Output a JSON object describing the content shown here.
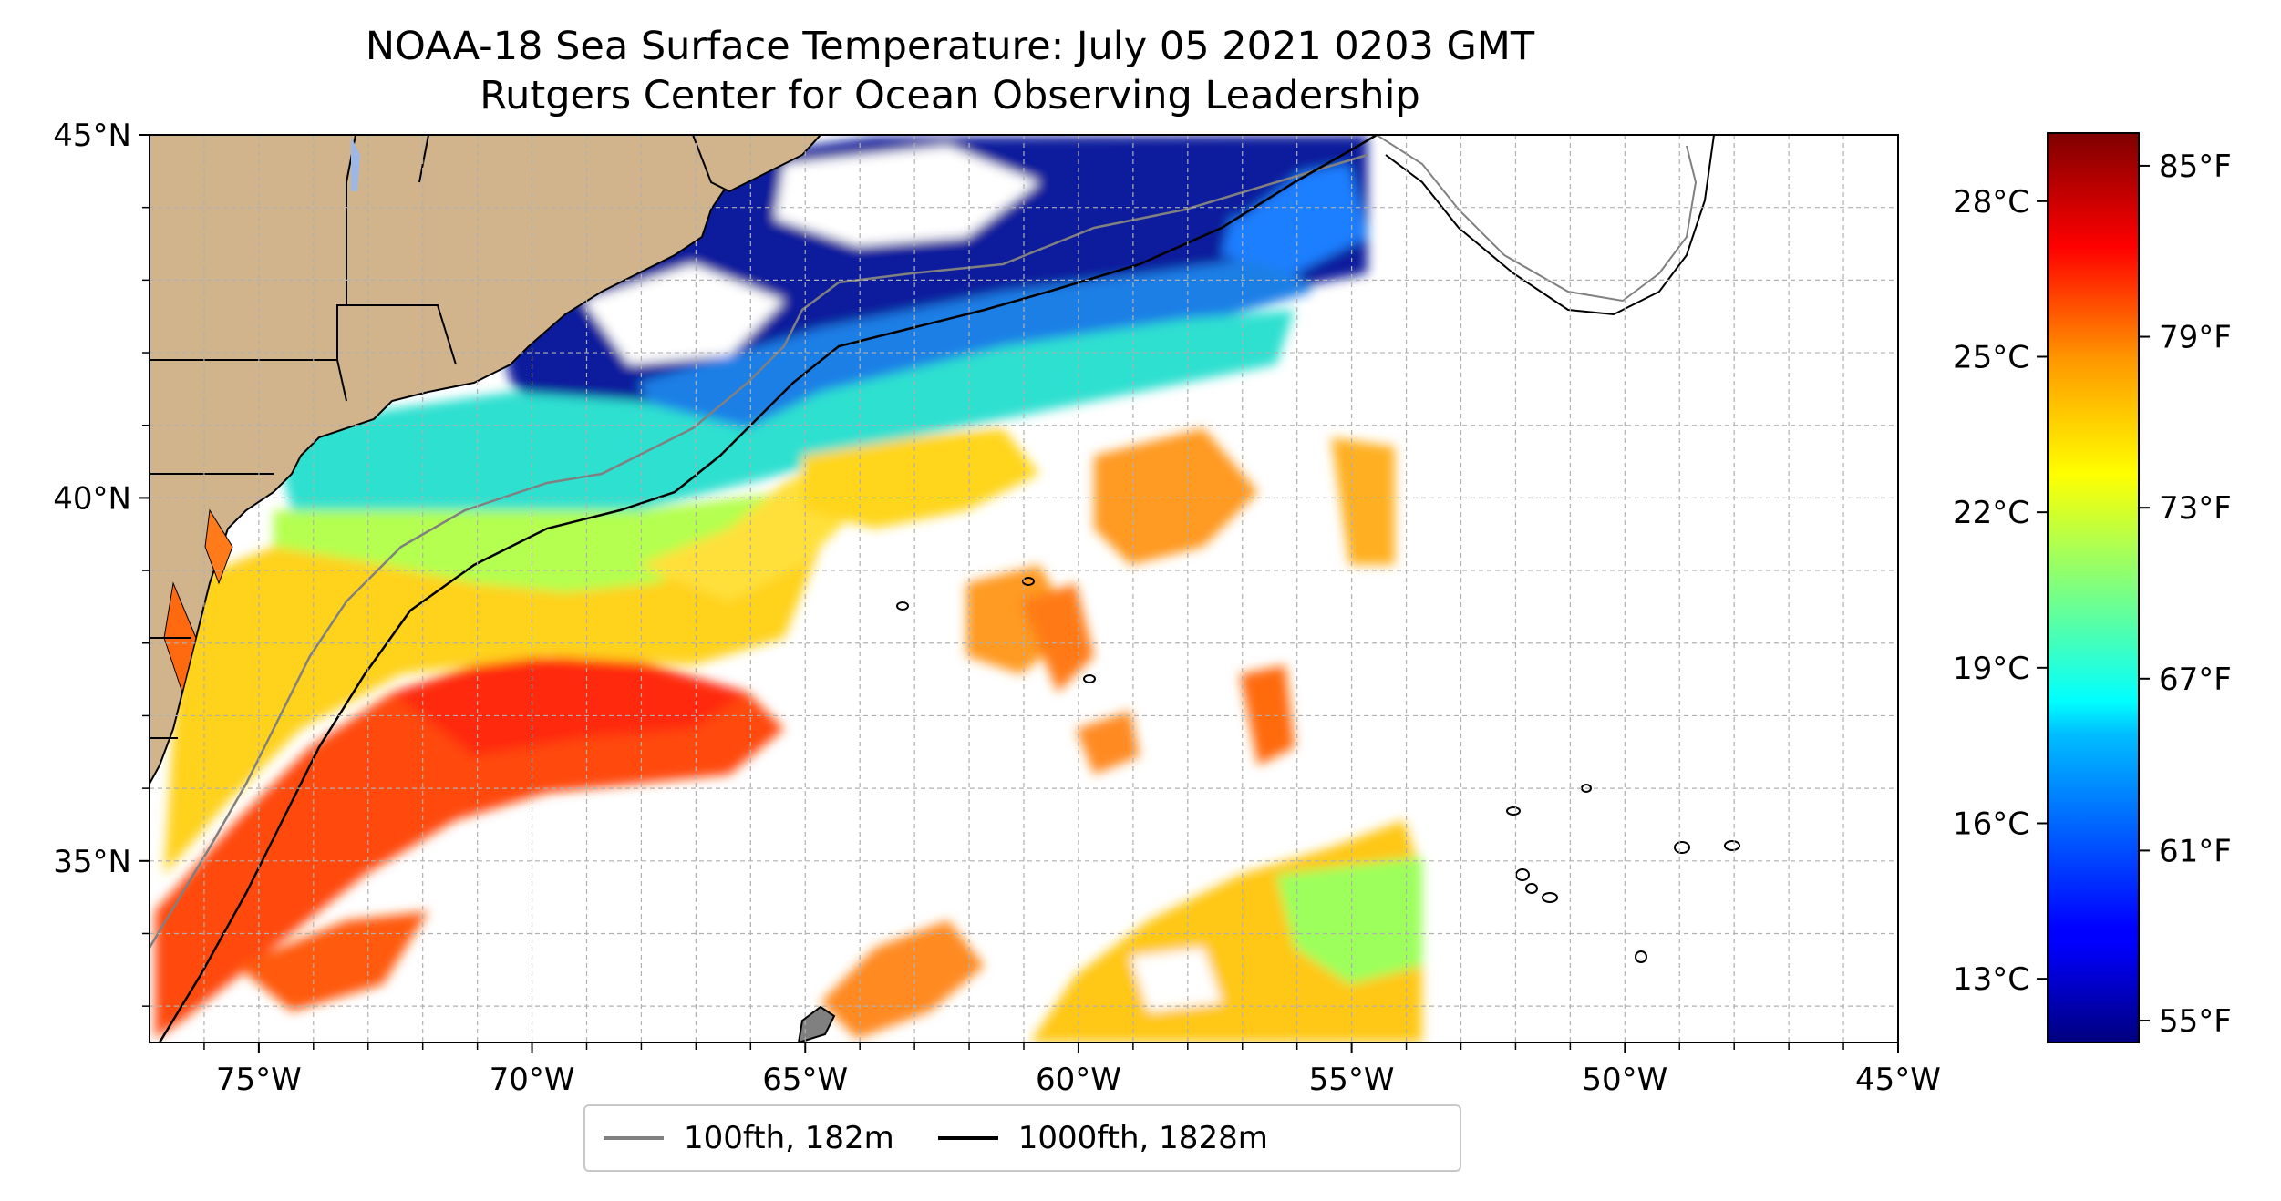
{
  "title_line1": "NOAA-18 Sea Surface Temperature: July 05 2021 0203 GMT",
  "title_line2": "Rutgers Center for Ocean Observing Leadership",
  "map": {
    "lon_range": [
      -77,
      -45
    ],
    "lat_range": [
      32.5,
      45
    ],
    "lon_ticks": [
      {
        "value": -75,
        "label": "75°W"
      },
      {
        "value": -70,
        "label": "70°W"
      },
      {
        "value": -65,
        "label": "65°W"
      },
      {
        "value": -60,
        "label": "60°W"
      },
      {
        "value": -55,
        "label": "55°W"
      },
      {
        "value": -50,
        "label": "50°W"
      },
      {
        "value": -45,
        "label": "45°W"
      }
    ],
    "lat_ticks": [
      {
        "value": 45,
        "label": "45°N"
      },
      {
        "value": 40,
        "label": "40°N"
      },
      {
        "value": 35,
        "label": "35°N"
      }
    ],
    "grid": true,
    "land_color": "#d2b48c",
    "ocean_background": "#ffffff"
  },
  "colorbar": {
    "colormap": "jet",
    "celsius_labels": [
      "28°C",
      "25°C",
      "22°C",
      "19°C",
      "16°C",
      "13°C"
    ],
    "fahrenheit_labels": [
      "85°F",
      "79°F",
      "73°F",
      "67°F",
      "61°F",
      "55°F"
    ]
  },
  "legend": {
    "items": [
      {
        "label": "100fth, 182m",
        "color": "#808080"
      },
      {
        "label": "1000fth, 1828m",
        "color": "#000000"
      }
    ]
  }
}
